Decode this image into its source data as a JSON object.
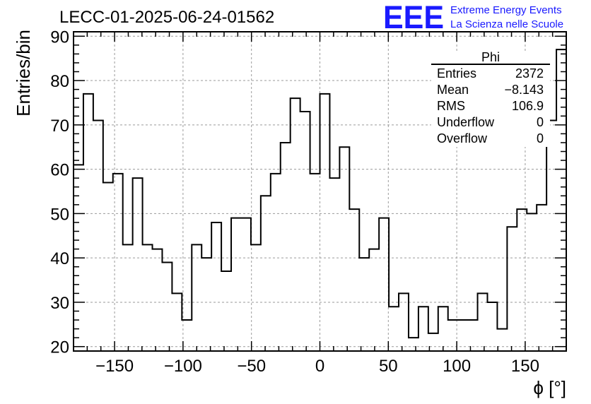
{
  "chart_data": {
    "type": "bar",
    "title": "LECC-01-2025-06-24-01562",
    "xlabel": "ϕ [°]",
    "ylabel": "Entries/bin",
    "xlim": [
      -180,
      180
    ],
    "ylim": [
      19,
      91
    ],
    "grid": true,
    "bin_width": 7.2,
    "x_ticks": [
      -150,
      -100,
      -50,
      0,
      50,
      100,
      150
    ],
    "x_tick_labels": [
      "−150",
      "−100",
      "−50",
      "0",
      "50",
      "100",
      "150"
    ],
    "y_ticks": [
      20,
      30,
      40,
      50,
      60,
      70,
      80,
      90
    ],
    "values": [
      61,
      77,
      71,
      57,
      59,
      43,
      58,
      43,
      42,
      39,
      32,
      26,
      43,
      40,
      48,
      37,
      49,
      49,
      43,
      54,
      59,
      66,
      76,
      73,
      59,
      77,
      58,
      65,
      51,
      40,
      42,
      49,
      29,
      32,
      22,
      29,
      23,
      29,
      26,
      26,
      26,
      32,
      30,
      24,
      47,
      51,
      50,
      52,
      71,
      87
    ],
    "stats": {
      "name": "Phi",
      "rows": [
        {
          "label": "Entries",
          "value": "2372"
        },
        {
          "label": "Mean",
          "value": "−8.143"
        },
        {
          "label": "RMS",
          "value": "106.9"
        },
        {
          "label": "Underflow",
          "value": "0"
        },
        {
          "label": "Overflow",
          "value": "0"
        }
      ]
    },
    "colors": {
      "line": "#000000",
      "grid": "#9a9a9a",
      "logo": "#1a1aff"
    }
  },
  "logo": {
    "mark": "EEE",
    "line1": "Extreme Energy Events",
    "line2": "La Scienza nelle Scuole"
  }
}
